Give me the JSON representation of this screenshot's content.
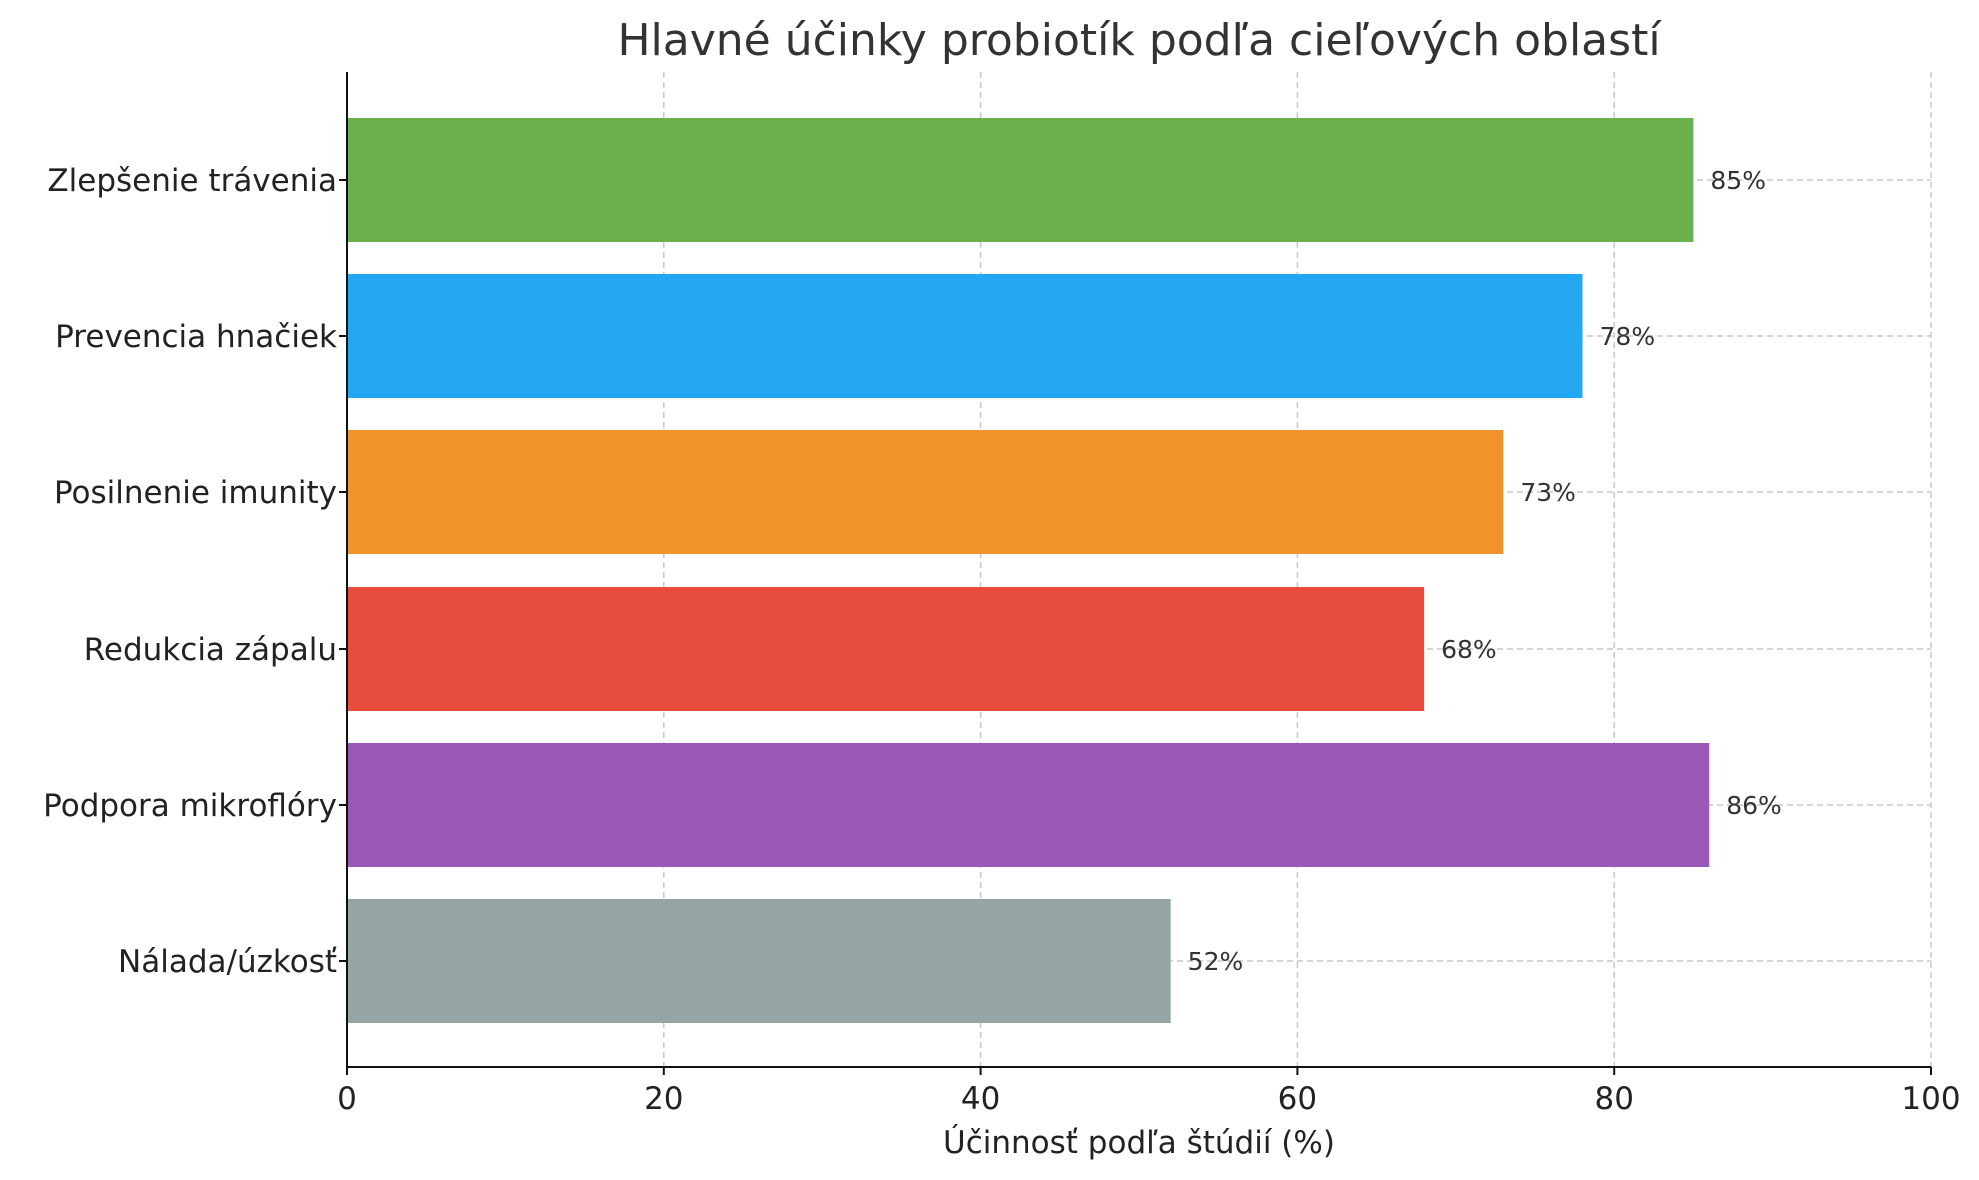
{
  "chart_data": {
    "type": "bar",
    "orientation": "horizontal",
    "title": "Hlavné účinky probiotík podľa cieľových oblastí",
    "xlabel": "Účinnosť podľa štúdií (%)",
    "ylabel": "",
    "xlim": [
      0,
      100
    ],
    "xticks": [
      0,
      20,
      40,
      60,
      80,
      100
    ],
    "grid": true,
    "categories": [
      "Zlepšenie trávenia",
      "Prevencia hnačiek",
      "Posilnenie imunity",
      "Redukcia zápalu",
      "Podpora mikroflóry",
      "Nálada/úzkosť"
    ],
    "values": [
      85,
      78,
      73,
      68,
      86,
      52
    ],
    "value_labels": [
      "85%",
      "78%",
      "73%",
      "68%",
      "86%",
      "52%"
    ],
    "colors": [
      "#6ab04c",
      "#22a7f0",
      "#f0932b",
      "#e74c3c",
      "#9b59b6",
      "#95a5a6"
    ]
  }
}
